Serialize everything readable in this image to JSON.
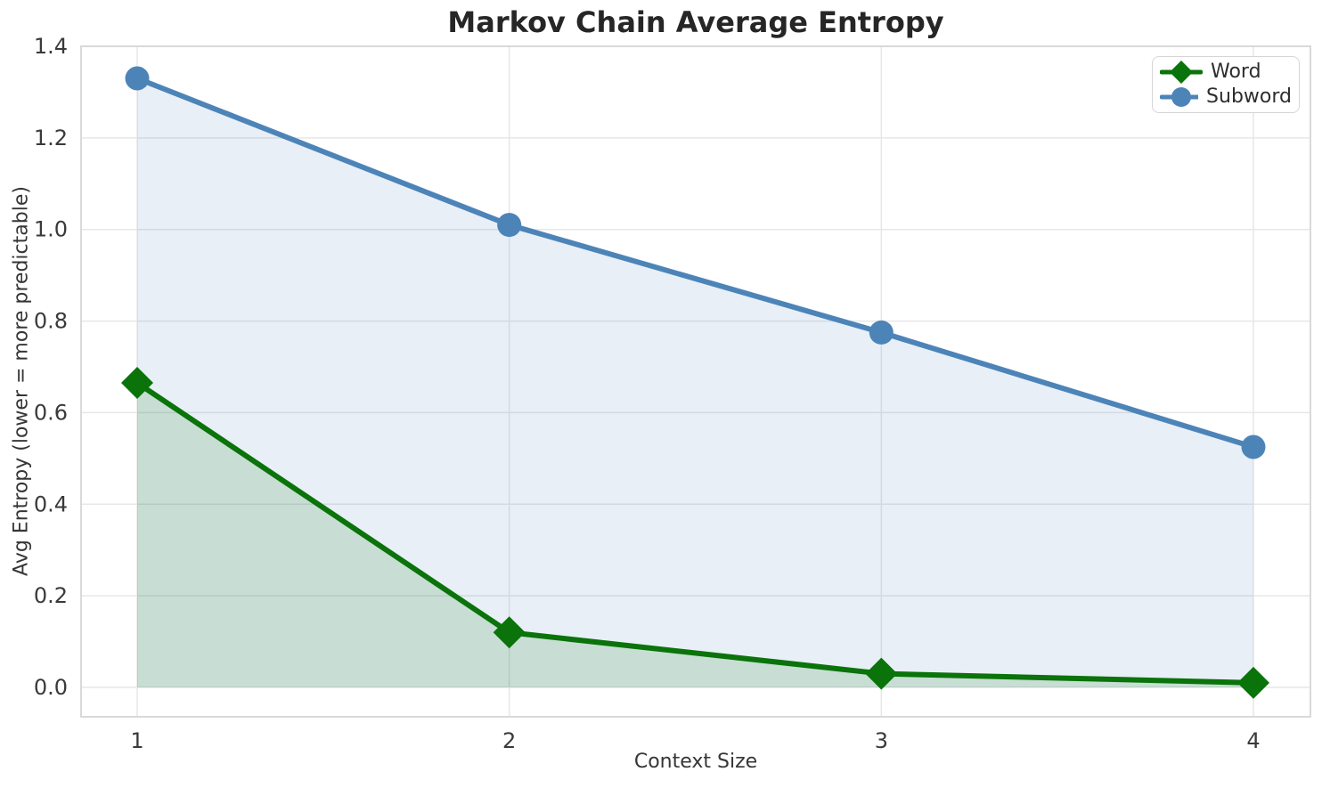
{
  "chart_data": {
    "type": "line",
    "title": "Markov Chain Average Entropy",
    "xlabel": "Context Size",
    "ylabel": "Avg Entropy (lower = more predictable)",
    "x": [
      1,
      2,
      3,
      4
    ],
    "xtick_labels": [
      "1",
      "2",
      "3",
      "4"
    ],
    "yticks": [
      0.0,
      0.2,
      0.4,
      0.6,
      0.8,
      1.0,
      1.2,
      1.4
    ],
    "ytick_labels": [
      "0.0",
      "0.2",
      "0.4",
      "0.6",
      "0.8",
      "1.0",
      "1.2",
      "1.4"
    ],
    "xlim": [
      0.85,
      4.15
    ],
    "ylim": [
      -0.065,
      1.4
    ],
    "grid": true,
    "legend_position": "upper right",
    "series": [
      {
        "name": "Word",
        "marker": "diamond",
        "color": "#0a730a",
        "fill_to_zero": true,
        "fill_alpha": 0.14,
        "values": [
          0.665,
          0.12,
          0.03,
          0.01
        ]
      },
      {
        "name": "Subword",
        "marker": "circle",
        "color": "#4d84b8",
        "fill_to_zero": true,
        "fill_alpha": 0.13,
        "values": [
          1.33,
          1.01,
          0.775,
          0.525
        ]
      }
    ],
    "colors": {
      "grid": "#e7e7e7",
      "spine": "#d9d9d9",
      "tick_text": "#3a3a3a",
      "title_text": "#262626"
    }
  }
}
